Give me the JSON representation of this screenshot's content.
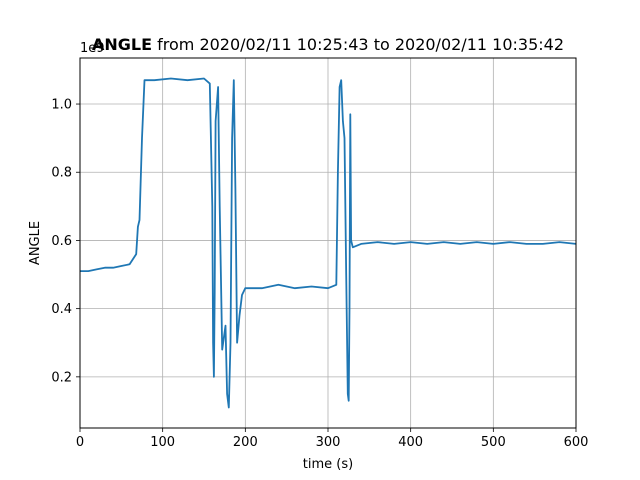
{
  "chart_data": {
    "type": "line",
    "title_bold": "ANGLE",
    "title_rest": " from 2020/02/11 10:25:43 to 2020/02/11 10:35:42",
    "xlabel": "time (s)",
    "ylabel": "ANGLE",
    "y_offset_text": "1e9",
    "xlim": [
      0,
      600
    ],
    "ylim": [
      0.05,
      1.135
    ],
    "x_ticks": [
      0,
      100,
      200,
      300,
      400,
      500,
      600
    ],
    "x_tick_labels": [
      "0",
      "100",
      "200",
      "300",
      "400",
      "500",
      "600"
    ],
    "y_ticks": [
      0.2,
      0.4,
      0.6,
      0.8,
      1.0
    ],
    "y_tick_labels": [
      "0.2",
      "0.4",
      "0.6",
      "0.8",
      "1.0"
    ],
    "grid": true,
    "line_color": "#1f77b4",
    "series": [
      {
        "x": [
          0,
          10,
          20,
          30,
          40,
          50,
          60,
          68,
          70,
          72,
          75,
          78,
          90,
          110,
          130,
          150,
          157,
          160,
          161,
          162,
          163,
          164,
          167,
          169,
          172,
          176,
          178,
          180,
          182,
          184,
          186,
          188,
          190,
          193,
          196,
          200,
          220,
          240,
          260,
          280,
          300,
          310,
          312,
          314,
          316,
          318,
          320,
          322,
          324,
          325,
          326,
          327,
          328,
          330,
          340,
          360,
          380,
          400,
          420,
          440,
          460,
          480,
          500,
          520,
          540,
          560,
          580,
          600
        ],
        "y": [
          0.51,
          0.51,
          0.515,
          0.52,
          0.52,
          0.525,
          0.53,
          0.56,
          0.64,
          0.66,
          0.9,
          1.07,
          1.07,
          1.075,
          1.07,
          1.075,
          1.06,
          0.7,
          0.3,
          0.2,
          0.45,
          0.95,
          1.05,
          0.7,
          0.28,
          0.35,
          0.15,
          0.11,
          0.3,
          0.9,
          1.07,
          0.75,
          0.3,
          0.38,
          0.44,
          0.46,
          0.46,
          0.47,
          0.46,
          0.465,
          0.46,
          0.47,
          0.8,
          1.05,
          1.07,
          0.95,
          0.9,
          0.5,
          0.15,
          0.13,
          0.4,
          0.97,
          0.6,
          0.58,
          0.59,
          0.595,
          0.59,
          0.595,
          0.59,
          0.595,
          0.59,
          0.595,
          0.59,
          0.595,
          0.59,
          0.59,
          0.595,
          0.59
        ]
      }
    ]
  }
}
